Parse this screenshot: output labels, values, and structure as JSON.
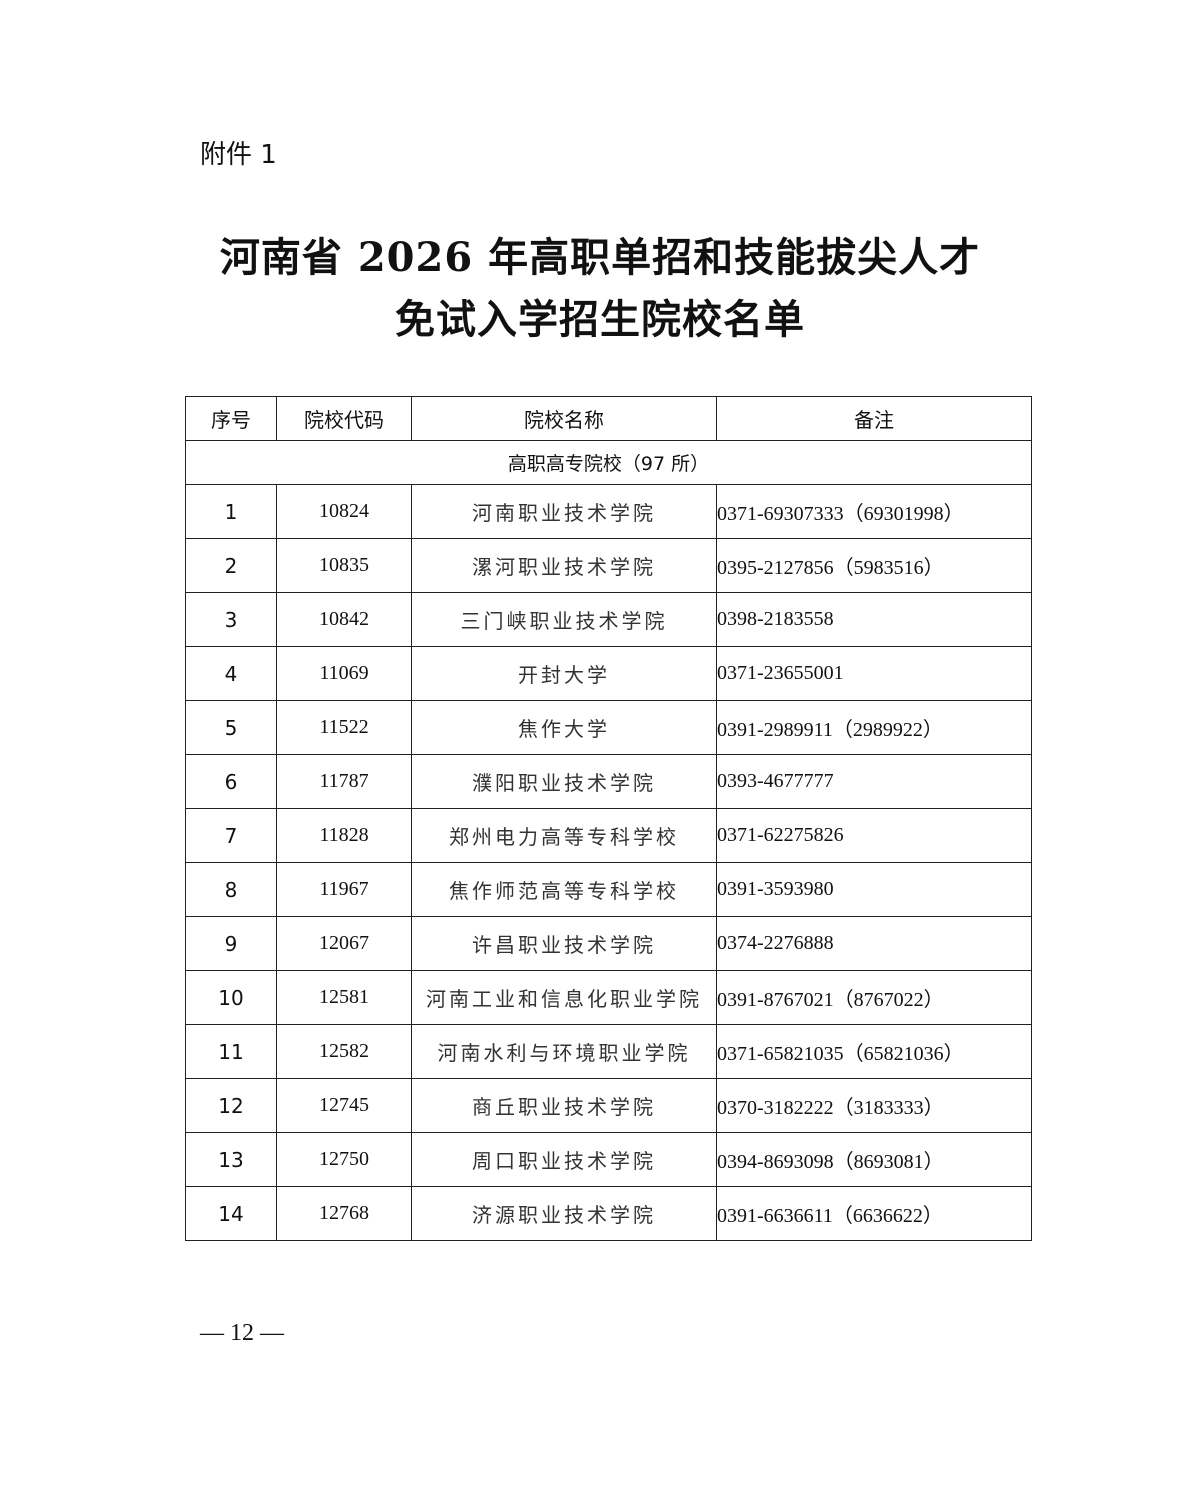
{
  "attachment_label": "附件 1",
  "title_line1": "河南省 2026 年高职单招和技能拔尖人才",
  "title_line2": "免试入学招生院校名单",
  "table": {
    "headers": [
      "序号",
      "院校代码",
      "院校名称",
      "备注"
    ],
    "section": "高职高专院校（97 所）",
    "rows": [
      {
        "no": "1",
        "code": "10824",
        "name": "河南职业技术学院",
        "note": "0371-69307333（69301998）"
      },
      {
        "no": "2",
        "code": "10835",
        "name": "漯河职业技术学院",
        "note": "0395-2127856（5983516）"
      },
      {
        "no": "3",
        "code": "10842",
        "name": "三门峡职业技术学院",
        "note": "0398-2183558"
      },
      {
        "no": "4",
        "code": "11069",
        "name": "开封大学",
        "note": "0371-23655001"
      },
      {
        "no": "5",
        "code": "11522",
        "name": "焦作大学",
        "note": "0391-2989911（2989922）"
      },
      {
        "no": "6",
        "code": "11787",
        "name": "濮阳职业技术学院",
        "note": "0393-4677777"
      },
      {
        "no": "7",
        "code": "11828",
        "name": "郑州电力高等专科学校",
        "note": "0371-62275826"
      },
      {
        "no": "8",
        "code": "11967",
        "name": "焦作师范高等专科学校",
        "note": "0391-3593980"
      },
      {
        "no": "9",
        "code": "12067",
        "name": "许昌职业技术学院",
        "note": "0374-2276888"
      },
      {
        "no": "10",
        "code": "12581",
        "name": "河南工业和信息化职业学院",
        "note": "0391-8767021（8767022）"
      },
      {
        "no": "11",
        "code": "12582",
        "name": "河南水利与环境职业学院",
        "note": "0371-65821035（65821036）"
      },
      {
        "no": "12",
        "code": "12745",
        "name": "商丘职业技术学院",
        "note": "0370-3182222（3183333）"
      },
      {
        "no": "13",
        "code": "12750",
        "name": "周口职业技术学院",
        "note": "0394-8693098（8693081）"
      },
      {
        "no": "14",
        "code": "12768",
        "name": "济源职业技术学院",
        "note": "0391-6636611（6636622）"
      }
    ]
  },
  "page_number": "— 12 —"
}
